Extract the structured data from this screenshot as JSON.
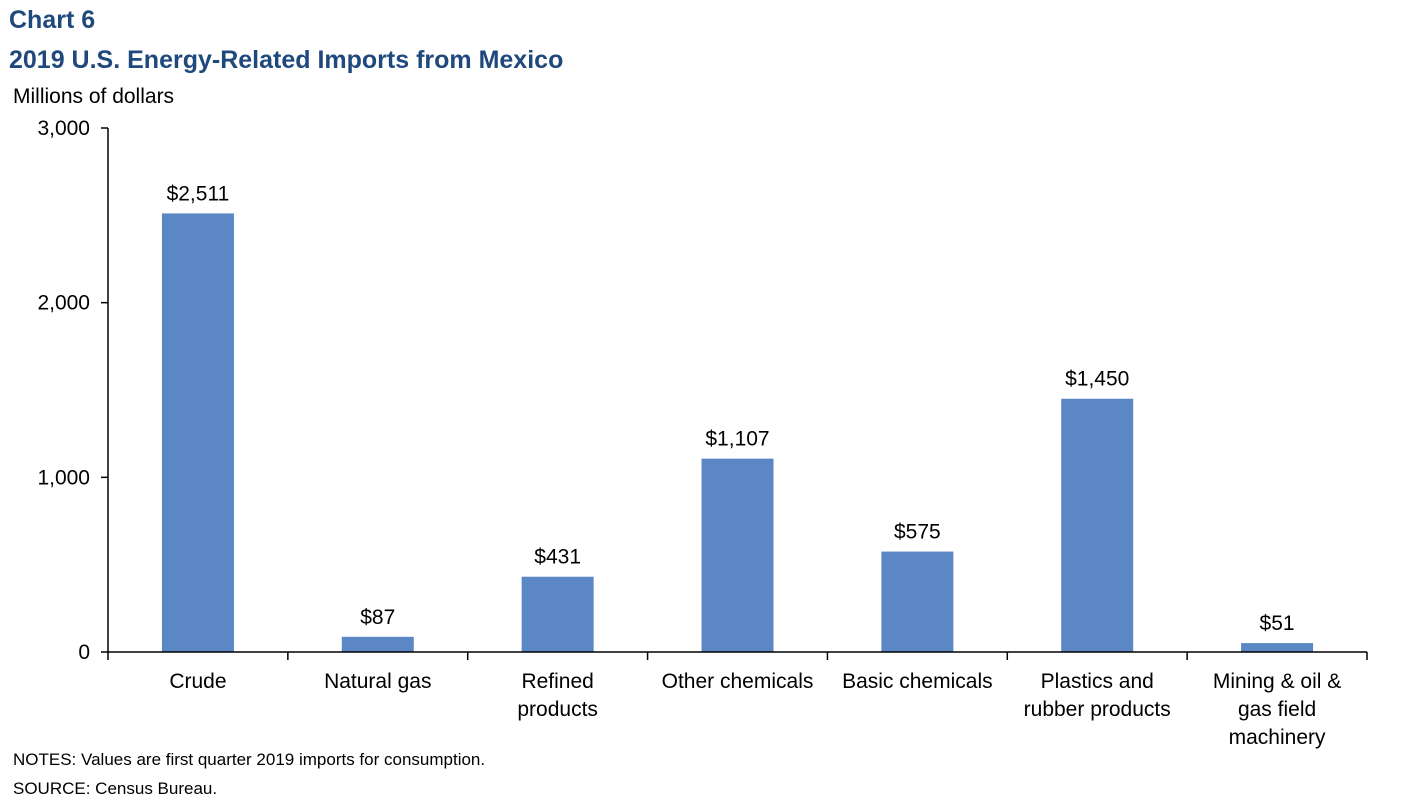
{
  "header": {
    "chart_number": "Chart 6",
    "title": "2019 U.S. Energy-Related Imports from Mexico"
  },
  "footer": {
    "notes": "NOTES: Values are first quarter 2019 imports for consumption.",
    "source": "SOURCE: Census Bureau."
  },
  "colors": {
    "bar": "#5b87c5",
    "title": "#1f497d",
    "axis": "#000000"
  },
  "chart_data": {
    "type": "bar",
    "title": "2019 U.S. Energy-Related Imports from Mexico",
    "ylabel": "Millions of dollars",
    "xlabel": "",
    "ylim": [
      0,
      3000
    ],
    "yticks": [
      0,
      1000,
      2000,
      3000
    ],
    "ytick_labels": [
      "0",
      "1,000",
      "2,000",
      "3,000"
    ],
    "categories": [
      [
        "Crude"
      ],
      [
        "Natural gas"
      ],
      [
        "Refined",
        "products"
      ],
      [
        "Other chemicals"
      ],
      [
        "Basic chemicals"
      ],
      [
        "Plastics and",
        "rubber products"
      ],
      [
        "Mining & oil &",
        "gas field",
        "machinery"
      ]
    ],
    "values": [
      2511,
      87,
      431,
      1107,
      575,
      1450,
      51
    ],
    "data_labels": [
      "$2,511",
      "$87",
      "$431",
      "$1,107",
      "$575",
      "$1,450",
      "$51"
    ],
    "grid": false,
    "legend": "none"
  }
}
